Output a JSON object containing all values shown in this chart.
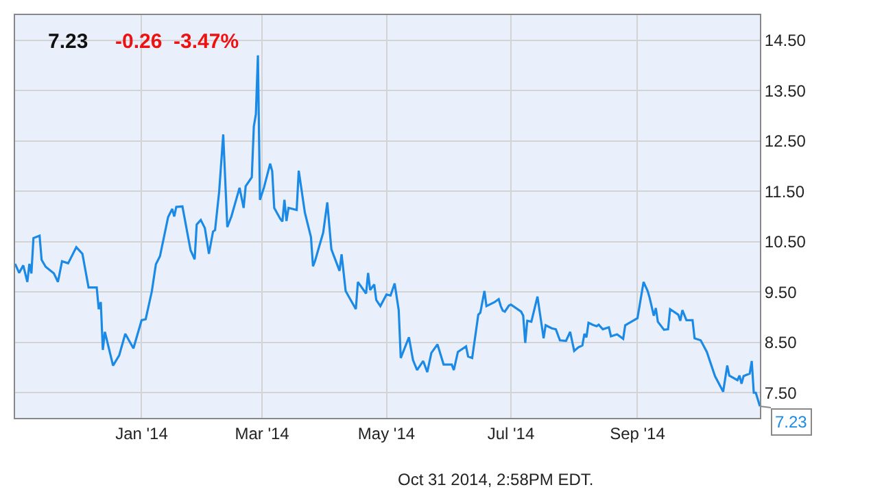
{
  "chart_data": {
    "type": "line",
    "title": "7.23",
    "subtitle": "-0.26  -3.47%",
    "x": [
      "2013-10-31",
      "2013-11-02",
      "2013-11-04",
      "2013-11-06",
      "2013-11-07",
      "2013-11-08",
      "2013-11-09",
      "2013-11-12",
      "2013-11-13",
      "2013-11-15",
      "2013-11-19",
      "2013-11-21",
      "2013-11-23",
      "2013-11-26",
      "2013-11-30",
      "2013-12-03",
      "2013-12-06",
      "2013-12-10",
      "2013-12-11",
      "2013-12-12",
      "2013-12-13",
      "2013-12-14",
      "2013-12-18",
      "2013-12-21",
      "2013-12-24",
      "2013-12-28",
      "2013-12-30",
      "2014-01-01",
      "2014-01-03",
      "2014-01-06",
      "2014-01-08",
      "2014-01-10",
      "2014-01-14",
      "2014-01-16",
      "2014-01-17",
      "2014-01-18",
      "2014-01-21",
      "2014-01-25",
      "2014-01-27",
      "2014-01-28",
      "2014-01-30",
      "2014-02-01",
      "2014-02-03",
      "2014-02-05",
      "2014-02-06",
      "2014-02-08",
      "2014-02-10",
      "2014-02-12",
      "2014-02-14",
      "2014-02-18",
      "2014-02-20",
      "2014-02-21",
      "2014-02-24",
      "2014-02-25",
      "2014-02-26",
      "2014-02-27",
      "2014-02-28",
      "2014-03-02",
      "2014-03-05",
      "2014-03-06",
      "2014-03-07",
      "2014-03-10",
      "2014-03-11",
      "2014-03-12",
      "2014-03-13",
      "2014-03-14",
      "2014-03-18",
      "2014-03-19",
      "2014-03-22",
      "2014-03-25",
      "2014-03-26",
      "2014-03-27",
      "2014-03-31",
      "2014-04-02",
      "2014-04-04",
      "2014-04-08",
      "2014-04-09",
      "2014-04-11",
      "2014-04-16",
      "2014-04-17",
      "2014-04-21",
      "2014-04-22",
      "2014-04-23",
      "2014-04-25",
      "2014-04-26",
      "2014-04-28",
      "2014-05-01",
      "2014-05-03",
      "2014-05-05",
      "2014-05-07",
      "2014-05-08",
      "2014-05-12",
      "2014-05-14",
      "2014-05-16",
      "2014-05-19",
      "2014-05-21",
      "2014-05-23",
      "2014-05-26",
      "2014-05-29",
      "2014-06-02",
      "2014-06-03",
      "2014-06-05",
      "2014-06-09",
      "2014-06-10",
      "2014-06-12",
      "2014-06-15",
      "2014-06-16",
      "2014-06-18",
      "2014-06-19",
      "2014-06-23",
      "2014-06-25",
      "2014-06-26",
      "2014-06-27",
      "2014-06-28",
      "2014-06-30",
      "2014-07-01",
      "2014-07-06",
      "2014-07-07",
      "2014-07-08",
      "2014-07-09",
      "2014-07-11",
      "2014-07-14",
      "2014-07-17",
      "2014-07-18",
      "2014-07-21",
      "2014-07-23",
      "2014-07-25",
      "2014-07-28",
      "2014-07-30",
      "2014-08-01",
      "2014-08-03",
      "2014-08-05",
      "2014-08-06",
      "2014-08-07",
      "2014-08-08",
      "2014-08-10",
      "2014-08-12",
      "2014-08-13",
      "2014-08-15",
      "2014-08-18",
      "2014-08-19",
      "2014-08-22",
      "2014-08-25",
      "2014-08-26",
      "2014-08-29",
      "2014-09-01",
      "2014-09-04",
      "2014-09-06",
      "2014-09-07",
      "2014-09-09",
      "2014-09-10",
      "2014-09-11",
      "2014-09-14",
      "2014-09-16",
      "2014-09-17",
      "2014-09-21",
      "2014-09-22",
      "2014-09-23",
      "2014-09-25",
      "2014-09-28",
      "2014-09-29",
      "2014-10-02",
      "2014-10-05",
      "2014-10-09",
      "2014-10-13",
      "2014-10-15",
      "2014-10-16",
      "2014-10-20",
      "2014-10-21",
      "2014-10-22",
      "2014-10-23",
      "2014-10-26",
      "2014-10-27",
      "2014-10-28",
      "2014-10-29",
      "2014-10-31"
    ],
    "series": [
      {
        "color": "#1a8ae6",
        "values": [
          10.06,
          9.88,
          10.03,
          9.7,
          10.06,
          9.87,
          10.57,
          10.62,
          10.14,
          10.0,
          9.87,
          9.7,
          10.11,
          10.07,
          10.39,
          10.26,
          9.59,
          9.59,
          9.16,
          9.3,
          8.35,
          8.71,
          8.04,
          8.24,
          8.67,
          8.38,
          8.66,
          8.94,
          8.96,
          9.51,
          10.05,
          10.21,
          10.99,
          11.15,
          11.0,
          11.19,
          11.2,
          10.33,
          10.15,
          10.84,
          10.93,
          10.77,
          10.26,
          10.7,
          10.73,
          11.49,
          12.63,
          10.79,
          11.0,
          11.57,
          11.17,
          11.6,
          11.78,
          12.79,
          13.03,
          14.2,
          11.33,
          11.58,
          12.05,
          11.9,
          11.17,
          10.95,
          10.9,
          11.33,
          10.91,
          11.17,
          11.13,
          11.91,
          11.08,
          10.59,
          10.01,
          10.12,
          10.68,
          11.28,
          10.35,
          9.92,
          10.25,
          9.52,
          9.16,
          9.7,
          9.47,
          9.88,
          9.54,
          9.65,
          9.34,
          9.22,
          9.45,
          9.43,
          9.67,
          9.14,
          8.19,
          8.6,
          8.15,
          7.95,
          8.13,
          7.91,
          8.29,
          8.46,
          8.06,
          8.06,
          7.95,
          8.31,
          8.42,
          8.22,
          8.19,
          9.05,
          9.09,
          9.52,
          9.22,
          9.3,
          9.36,
          9.22,
          9.13,
          9.11,
          9.23,
          9.25,
          9.11,
          9.03,
          8.49,
          8.93,
          8.91,
          9.41,
          8.58,
          8.84,
          8.78,
          8.76,
          8.54,
          8.53,
          8.71,
          8.33,
          8.4,
          8.44,
          8.67,
          8.6,
          8.89,
          8.85,
          8.82,
          8.85,
          8.76,
          8.8,
          8.62,
          8.66,
          8.57,
          8.84,
          8.91,
          8.98,
          9.7,
          9.52,
          9.38,
          9.03,
          9.18,
          8.91,
          8.75,
          8.76,
          9.16,
          9.05,
          8.93,
          9.14,
          8.94,
          8.94,
          8.58,
          8.54,
          8.31,
          7.83,
          7.52,
          8.04,
          7.84,
          7.75,
          7.84,
          7.68,
          7.83,
          7.88,
          8.13,
          7.5,
          7.5,
          7.23
        ]
      }
    ],
    "xlim": [
      "2013-10-31",
      "2014-10-31"
    ],
    "xticks": [
      {
        "value": "2014-01-01",
        "label": "Jan '14"
      },
      {
        "value": "2014-03-01",
        "label": "Mar '14"
      },
      {
        "value": "2014-05-01",
        "label": "May '14"
      },
      {
        "value": "2014-07-01",
        "label": "Jul '14"
      },
      {
        "value": "2014-09-01",
        "label": "Sep '14"
      }
    ],
    "ylim": [
      7.0,
      15.0
    ],
    "yticks": [
      {
        "value": 7.5,
        "label": "7.50"
      },
      {
        "value": 8.5,
        "label": "8.50"
      },
      {
        "value": 9.5,
        "label": "9.50"
      },
      {
        "value": 10.5,
        "label": "10.50"
      },
      {
        "value": 11.5,
        "label": "11.50"
      },
      {
        "value": 12.5,
        "label": "12.50"
      },
      {
        "value": 13.5,
        "label": "13.50"
      },
      {
        "value": 14.5,
        "label": "14.50"
      }
    ],
    "grid": true,
    "marker": "none",
    "line_style": "solid",
    "annotations": [
      {
        "text": "7.23",
        "x": "2014-10-31",
        "y": 7.23
      },
      "Oct 31 2014, 2:58PM EDT."
    ]
  }
}
